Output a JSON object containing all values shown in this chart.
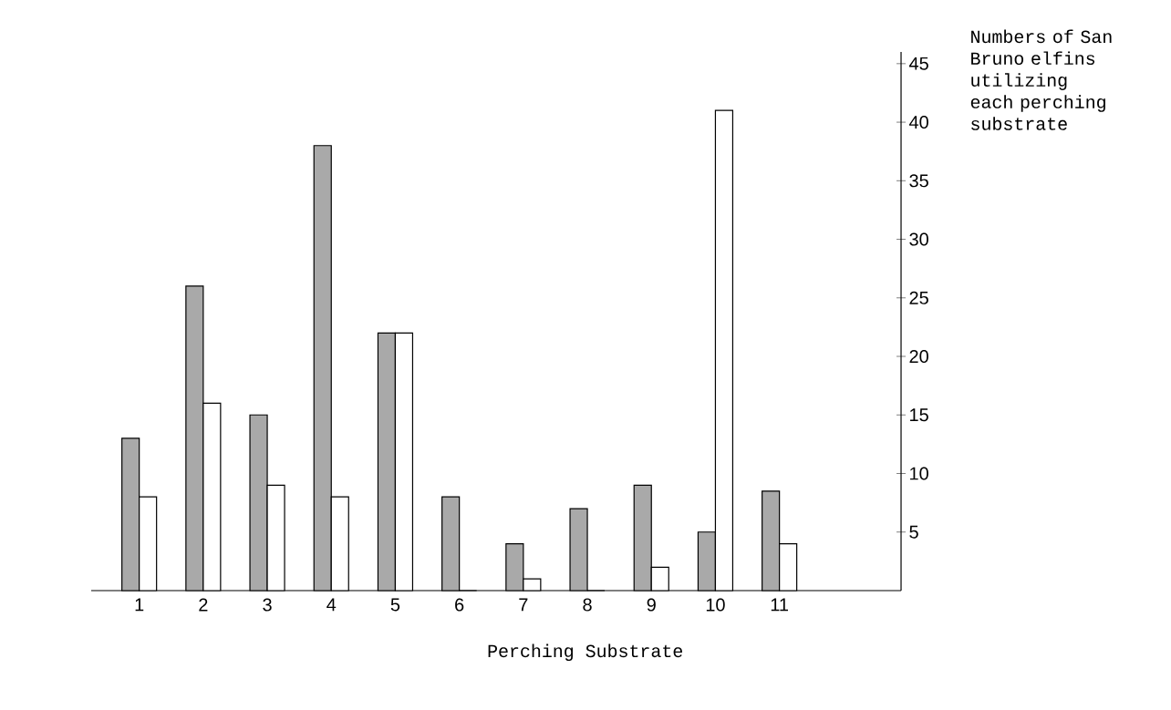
{
  "chart_data": {
    "type": "bar",
    "xlabel": "Perching Substrate",
    "ylabel": "Numbers of San Bruno elfins utilizing each perching substrate",
    "categories": [
      "1",
      "2",
      "3",
      "4",
      "5",
      "6",
      "7",
      "8",
      "9",
      "10",
      "11"
    ],
    "series": [
      {
        "color": "#a9a9a9",
        "values": [
          13,
          26,
          15,
          38,
          22,
          8,
          4,
          7,
          9,
          5,
          8.5
        ]
      },
      {
        "color": "#ffffff",
        "values": [
          8,
          16,
          9,
          8,
          22,
          0,
          1,
          0,
          2,
          41,
          4
        ]
      }
    ],
    "ylim": [
      0,
      46
    ],
    "yticks": [
      5,
      10,
      15,
      20,
      25,
      30,
      35,
      40,
      45
    ],
    "grid": false
  }
}
